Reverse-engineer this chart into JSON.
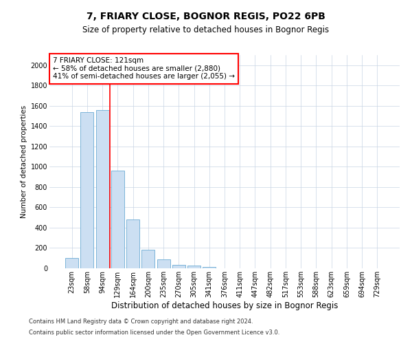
{
  "title1": "7, FRIARY CLOSE, BOGNOR REGIS, PO22 6PB",
  "title2": "Size of property relative to detached houses in Bognor Regis",
  "xlabel": "Distribution of detached houses by size in Bognor Regis",
  "ylabel": "Number of detached properties",
  "categories": [
    "23sqm",
    "58sqm",
    "94sqm",
    "129sqm",
    "164sqm",
    "200sqm",
    "235sqm",
    "270sqm",
    "305sqm",
    "341sqm",
    "376sqm",
    "411sqm",
    "447sqm",
    "482sqm",
    "517sqm",
    "553sqm",
    "588sqm",
    "623sqm",
    "659sqm",
    "694sqm",
    "729sqm"
  ],
  "values": [
    100,
    1540,
    1560,
    960,
    480,
    180,
    90,
    35,
    25,
    15,
    0,
    0,
    0,
    0,
    0,
    0,
    0,
    0,
    0,
    0,
    0
  ],
  "bar_color": "#ccdff2",
  "bar_edge_color": "#6aaad4",
  "red_line_x": 2.5,
  "annotation_line1": "7 FRIARY CLOSE: 121sqm",
  "annotation_line2": "← 58% of detached houses are smaller (2,880)",
  "annotation_line3": "41% of semi-detached houses are larger (2,055) →",
  "ylim": [
    0,
    2100
  ],
  "yticks": [
    0,
    200,
    400,
    600,
    800,
    1000,
    1200,
    1400,
    1600,
    1800,
    2000
  ],
  "footer1": "Contains HM Land Registry data © Crown copyright and database right 2024.",
  "footer2": "Contains public sector information licensed under the Open Government Licence v3.0.",
  "bg_color": "#ffffff",
  "grid_color": "#c8d4e4",
  "title1_fontsize": 10,
  "title2_fontsize": 8.5,
  "ylabel_fontsize": 7.5,
  "xlabel_fontsize": 8.5,
  "tick_fontsize": 7,
  "annot_fontsize": 7.5,
  "footer_fontsize": 6
}
